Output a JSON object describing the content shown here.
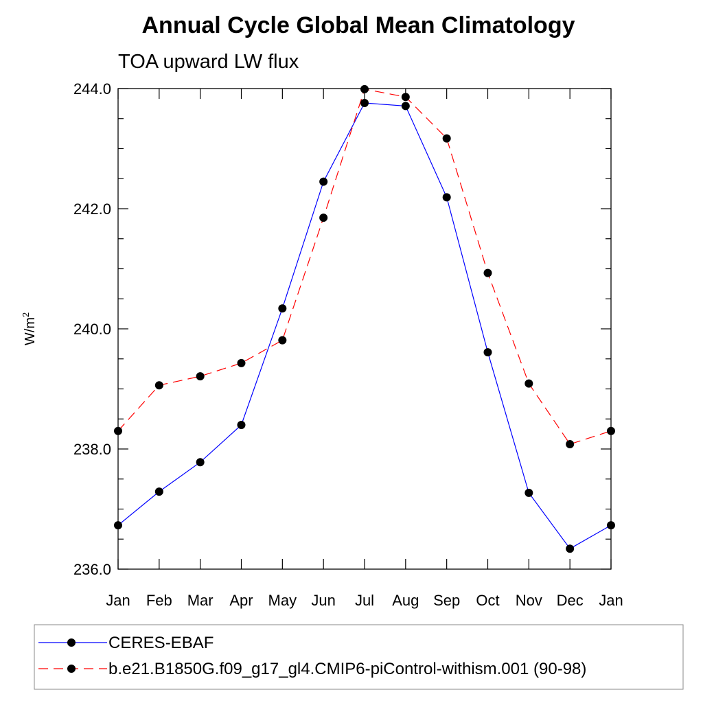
{
  "chart_data": {
    "type": "line",
    "title": "Annual Cycle Global Mean Climatology",
    "subtitle": "TOA upward LW flux",
    "xlabel": "",
    "ylabel_base": "W/m",
    "ylabel_sup": "2",
    "categories": [
      "Jan",
      "Feb",
      "Mar",
      "Apr",
      "May",
      "Jun",
      "Jul",
      "Aug",
      "Sep",
      "Oct",
      "Nov",
      "Dec",
      "Jan"
    ],
    "ylim": [
      236.0,
      244.0
    ],
    "yticks": [
      "236.0",
      "238.0",
      "240.0",
      "242.0",
      "244.0"
    ],
    "ytick_values": [
      236.0,
      238.0,
      240.0,
      242.0,
      244.0
    ],
    "series": [
      {
        "name": "CERES-EBAF",
        "color": "#0000ff",
        "dash": "solid",
        "values": [
          236.73,
          237.29,
          237.78,
          238.4,
          240.34,
          242.45,
          243.76,
          243.71,
          242.19,
          239.61,
          237.27,
          236.34,
          236.73
        ]
      },
      {
        "name": "b.e21.B1850G.f09_g17_gl4.CMIP6-piControl-withism.001 (90-98)",
        "color": "#ff0000",
        "dash": "dashed",
        "values": [
          238.3,
          239.06,
          239.21,
          239.43,
          239.81,
          241.85,
          243.99,
          243.86,
          243.17,
          240.93,
          239.09,
          238.08,
          238.3
        ]
      }
    ],
    "marker_color": "#000000",
    "legend_position": "bottom"
  }
}
